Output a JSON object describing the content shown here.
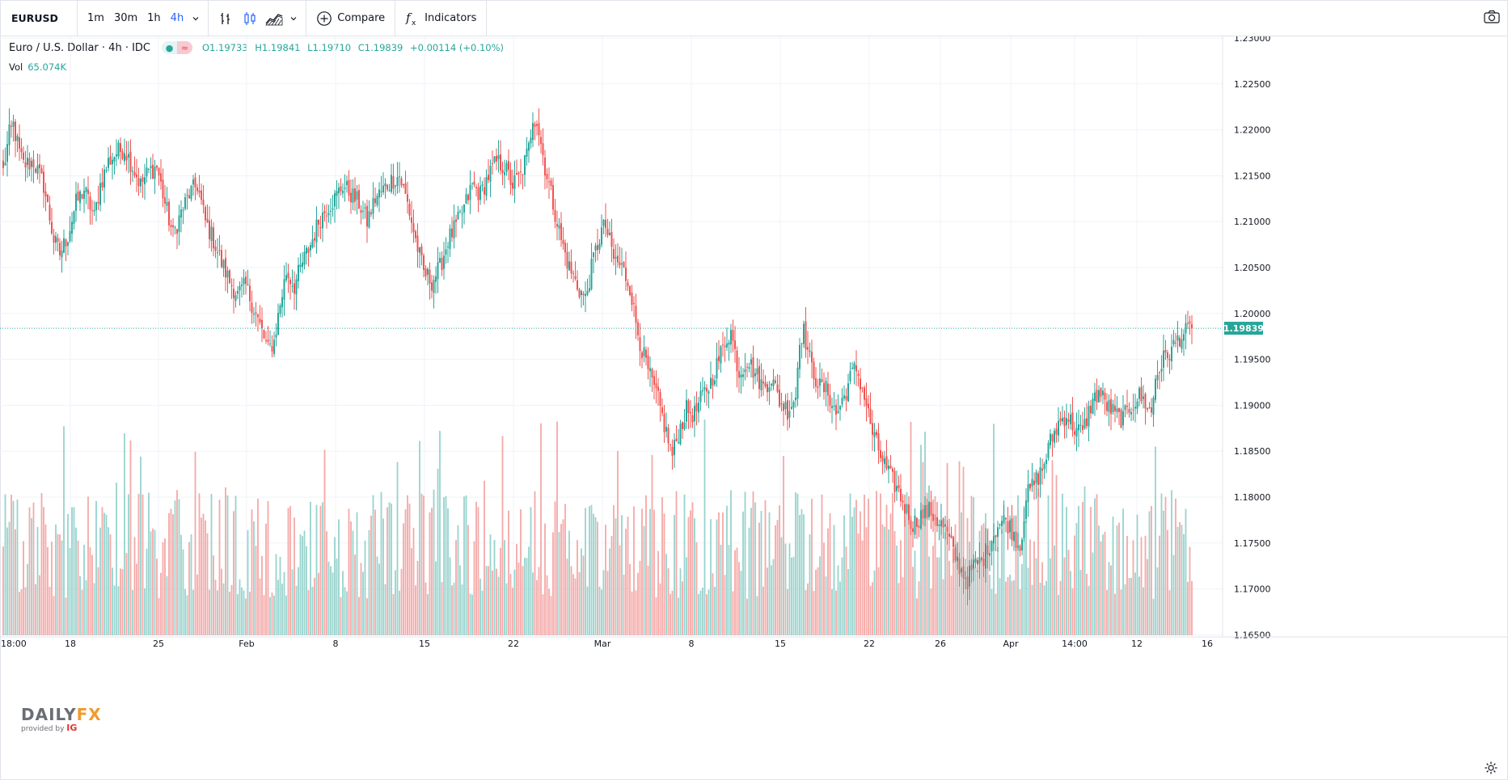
{
  "toolbar": {
    "symbol": "EURUSD",
    "intervals": [
      "1m",
      "30m",
      "1h",
      "4h"
    ],
    "active_interval": "4h",
    "compare_label": "Compare",
    "indicators_label": "Indicators",
    "icons": [
      "chevron-down-icon",
      "bar-style-icon",
      "candles-style-icon",
      "area-style-icon",
      "plus-circle-icon",
      "fx-icon",
      "camera-icon"
    ]
  },
  "legend": {
    "title": "Euro / U.S. Dollar · 4h · IDC",
    "open": "O1.19733",
    "high": "H1.19841",
    "low": "L1.19710",
    "close": "C1.19839",
    "change": "+0.00114 (+0.10%)",
    "volume_label": "Vol",
    "volume_value": "65.074K"
  },
  "colors": {
    "up": "#26a69a",
    "down": "#ef5350",
    "vol_up": "#98d3cd",
    "vol_down": "#f4a9a7",
    "grid": "#f0f3fa",
    "axis_text": "#131722",
    "price_line": "#26a69a"
  },
  "watermark": {
    "brand_a": "DAILY",
    "brand_b": "FX",
    "provided_by": "provided by",
    "ig": "IG"
  },
  "chart_data": {
    "type": "candlestick",
    "title": "Euro / U.S. Dollar · 4h · IDC",
    "ylim": [
      1.165,
      1.2312
    ],
    "y_ticks": [
      "1.23000",
      "1.22500",
      "1.22000",
      "1.21500",
      "1.21000",
      "1.20500",
      "1.20000",
      "1.19500",
      "1.19000",
      "1.18500",
      "1.18000",
      "1.17500",
      "1.17000",
      "1.16500"
    ],
    "x_ticks": [
      "18:00",
      "18",
      "25",
      "Feb",
      "8",
      "15",
      "22",
      "Mar",
      "8",
      "15",
      "22",
      "26",
      "Apr",
      "14:00",
      "12",
      "16"
    ],
    "last_price": "1.19839",
    "last_value": 1.19839,
    "anchors": [
      [
        0,
        1.2155
      ],
      [
        3,
        1.2195
      ],
      [
        5,
        1.2205
      ],
      [
        8,
        1.2175
      ],
      [
        10,
        1.2162
      ],
      [
        15,
        1.2165
      ],
      [
        20,
        1.214
      ],
      [
        25,
        1.208
      ],
      [
        28,
        1.2065
      ],
      [
        32,
        1.2085
      ],
      [
        36,
        1.212
      ],
      [
        40,
        1.2135
      ],
      [
        45,
        1.2105
      ],
      [
        48,
        1.214
      ],
      [
        52,
        1.2165
      ],
      [
        56,
        1.2175
      ],
      [
        60,
        1.218
      ],
      [
        64,
        1.216
      ],
      [
        68,
        1.214
      ],
      [
        72,
        1.2155
      ],
      [
        76,
        1.216
      ],
      [
        80,
        1.212
      ],
      [
        84,
        1.2085
      ],
      [
        88,
        1.211
      ],
      [
        92,
        1.213
      ],
      [
        96,
        1.214
      ],
      [
        100,
        1.21
      ],
      [
        104,
        1.208
      ],
      [
        108,
        1.2055
      ],
      [
        112,
        1.2035
      ],
      [
        116,
        1.202
      ],
      [
        120,
        1.203
      ],
      [
        124,
        1.2005
      ],
      [
        128,
        1.198
      ],
      [
        131,
        1.196
      ],
      [
        134,
        1.197
      ],
      [
        137,
        1.201
      ],
      [
        140,
        1.2045
      ],
      [
        144,
        1.203
      ],
      [
        148,
        1.2055
      ],
      [
        152,
        1.2075
      ],
      [
        156,
        1.21
      ],
      [
        160,
        1.2115
      ],
      [
        164,
        1.2125
      ],
      [
        168,
        1.214
      ],
      [
        172,
        1.213
      ],
      [
        176,
        1.212
      ],
      [
        180,
        1.21
      ],
      [
        184,
        1.2125
      ],
      [
        188,
        1.2135
      ],
      [
        192,
        1.2145
      ],
      [
        196,
        1.215
      ],
      [
        200,
        1.212
      ],
      [
        204,
        1.208
      ],
      [
        208,
        1.2045
      ],
      [
        212,
        1.2035
      ],
      [
        216,
        1.205
      ],
      [
        220,
        1.208
      ],
      [
        224,
        1.2095
      ],
      [
        228,
        1.2115
      ],
      [
        232,
        1.214
      ],
      [
        236,
        1.213
      ],
      [
        240,
        1.215
      ],
      [
        244,
        1.2165
      ],
      [
        248,
        1.216
      ],
      [
        252,
        1.214
      ],
      [
        256,
        1.215
      ],
      [
        260,
        1.218
      ],
      [
        262,
        1.2215
      ],
      [
        264,
        1.221
      ],
      [
        268,
        1.216
      ],
      [
        272,
        1.212
      ],
      [
        276,
        1.208
      ],
      [
        280,
        1.205
      ],
      [
        284,
        1.203
      ],
      [
        288,
        1.2015
      ],
      [
        292,
        1.206
      ],
      [
        296,
        1.209
      ],
      [
        298,
        1.2095
      ],
      [
        302,
        1.206
      ],
      [
        306,
        1.205
      ],
      [
        310,
        1.203
      ],
      [
        313,
        1.199
      ],
      [
        316,
        1.196
      ],
      [
        320,
        1.193
      ],
      [
        324,
        1.1905
      ],
      [
        328,
        1.187
      ],
      [
        331,
        1.1845
      ],
      [
        334,
        1.187
      ],
      [
        338,
        1.1895
      ],
      [
        342,
        1.189
      ],
      [
        346,
        1.191
      ],
      [
        350,
        1.1925
      ],
      [
        354,
        1.195
      ],
      [
        358,
        1.1975
      ],
      [
        360,
        1.198
      ],
      [
        364,
        1.1935
      ],
      [
        368,
        1.195
      ],
      [
        372,
        1.1935
      ],
      [
        376,
        1.192
      ],
      [
        380,
        1.193
      ],
      [
        384,
        1.1905
      ],
      [
        388,
        1.1895
      ],
      [
        392,
        1.191
      ],
      [
        394,
        1.1975
      ],
      [
        396,
        1.198
      ],
      [
        400,
        1.194
      ],
      [
        404,
        1.192
      ],
      [
        408,
        1.1915
      ],
      [
        412,
        1.189
      ],
      [
        416,
        1.191
      ],
      [
        420,
        1.1935
      ],
      [
        422,
        1.194
      ],
      [
        426,
        1.191
      ],
      [
        430,
        1.187
      ],
      [
        434,
        1.1845
      ],
      [
        438,
        1.1825
      ],
      [
        442,
        1.181
      ],
      [
        446,
        1.179
      ],
      [
        450,
        1.177
      ],
      [
        454,
        1.178
      ],
      [
        458,
        1.1785
      ],
      [
        462,
        1.1775
      ],
      [
        466,
        1.1765
      ],
      [
        470,
        1.174
      ],
      [
        474,
        1.172
      ],
      [
        477,
        1.171
      ],
      [
        480,
        1.1725
      ],
      [
        484,
        1.173
      ],
      [
        488,
        1.175
      ],
      [
        492,
        1.177
      ],
      [
        496,
        1.1775
      ],
      [
        500,
        1.176
      ],
      [
        503,
        1.1745
      ],
      [
        506,
        1.18
      ],
      [
        510,
        1.1815
      ],
      [
        514,
        1.183
      ],
      [
        518,
        1.186
      ],
      [
        522,
        1.188
      ],
      [
        526,
        1.189
      ],
      [
        530,
        1.1875
      ],
      [
        534,
        1.187
      ],
      [
        538,
        1.19
      ],
      [
        542,
        1.1915
      ],
      [
        546,
        1.19
      ],
      [
        550,
        1.189
      ],
      [
        554,
        1.1885
      ],
      [
        558,
        1.19
      ],
      [
        562,
        1.191
      ],
      [
        566,
        1.19
      ],
      [
        568,
        1.189
      ],
      [
        570,
        1.193
      ],
      [
        574,
        1.195
      ],
      [
        578,
        1.196
      ],
      [
        582,
        1.1975
      ],
      [
        586,
        1.198
      ],
      [
        588,
        1.1984
      ]
    ],
    "volume_range": [
      0,
      200000
    ]
  }
}
